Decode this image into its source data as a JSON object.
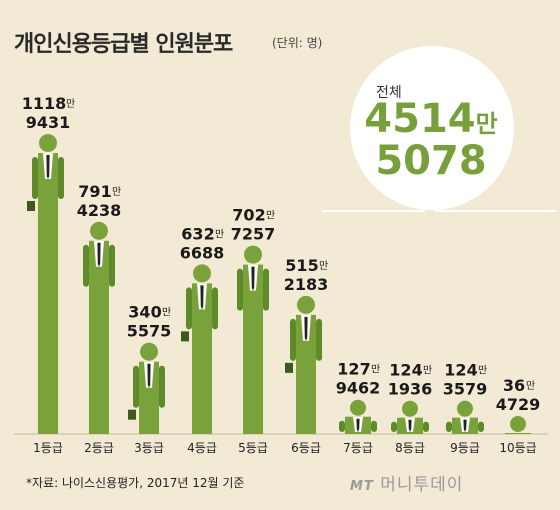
{
  "title": "개인신용등급별 인원분포",
  "unit": "(단위: 명)",
  "source": "*자료: 나이스신용평가, 2017년 12월 기준",
  "brand": {
    "mt": "MT",
    "name": "머니투데이"
  },
  "total": {
    "label": "전체",
    "top": "4514",
    "top_unit": "만",
    "bottom": "5078",
    "value": 45145078
  },
  "colors": {
    "figure": "#7aa23a",
    "figure_dark": "#5e8a2a",
    "bubble": "#ffffff",
    "text": "#1a1a1a",
    "accent": "#78a03a",
    "background": "#f3ead6"
  },
  "chart_data": {
    "type": "bar",
    "categories": [
      "1등급",
      "2등급",
      "3등급",
      "4등급",
      "5등급",
      "6등급",
      "7등급",
      "8등급",
      "9등급",
      "10등급"
    ],
    "values": [
      11189431,
      7914238,
      3405575,
      6326688,
      7027257,
      5152183,
      1279462,
      1241936,
      1243579,
      364729
    ],
    "labels_top": [
      "1118",
      "791",
      "340",
      "632",
      "702",
      "515",
      "127",
      "124",
      "124",
      "36"
    ],
    "labels_bottom": [
      "9431",
      "4238",
      "5575",
      "6688",
      "7257",
      "2183",
      "9462",
      "1936",
      "3579",
      "4729"
    ],
    "label_unit": "만",
    "ylabel": "",
    "xlabel": ""
  }
}
